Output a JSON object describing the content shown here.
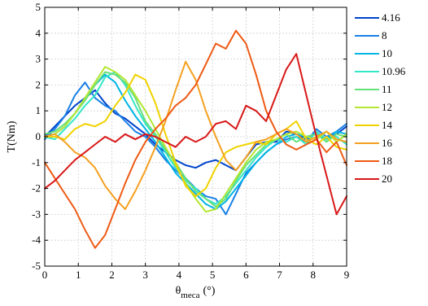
{
  "chart_data": {
    "type": "line",
    "xlabel_main": "θ",
    "xlabel_sub": "meca",
    "xlabel_unit": "(°)",
    "ylabel": "T(Nm)",
    "xlim": [
      0,
      9
    ],
    "ylim": [
      -5,
      5
    ],
    "xticks": [
      0,
      1,
      2,
      3,
      4,
      5,
      6,
      7,
      8,
      9
    ],
    "yticks": [
      -5,
      -4,
      -3,
      -2,
      -1,
      0,
      1,
      2,
      3,
      4,
      5
    ],
    "grid": true,
    "legend_position": "right-outside",
    "series": [
      {
        "name": "4.16",
        "color": "#0044cc",
        "x": [
          0,
          0.3,
          0.6,
          0.9,
          1.2,
          1.5,
          1.8,
          2.1,
          2.4,
          2.7,
          3.0,
          3.3,
          3.6,
          3.9,
          4.2,
          4.5,
          4.8,
          5.1,
          5.4,
          5.7,
          6.0,
          6.3,
          6.6,
          6.9,
          7.2,
          7.5,
          7.8,
          8.1,
          8.4,
          8.7,
          9.0
        ],
        "y": [
          0,
          0.4,
          0.8,
          1.2,
          1.5,
          1.8,
          1.3,
          0.9,
          0.7,
          0.4,
          0.1,
          -0.3,
          -0.6,
          -0.9,
          -1.1,
          -1.2,
          -1.0,
          -0.9,
          -1.1,
          -1.3,
          -0.8,
          -0.3,
          -0.2,
          -0.2,
          0.2,
          0.1,
          -0.1,
          0.2,
          -0.1,
          0.1,
          0.4
        ]
      },
      {
        "name": "8",
        "color": "#1a80e6",
        "x": [
          0,
          0.3,
          0.6,
          0.9,
          1.2,
          1.5,
          1.8,
          2.1,
          2.4,
          2.7,
          3.0,
          3.3,
          3.6,
          3.9,
          4.2,
          4.5,
          4.8,
          5.1,
          5.4,
          5.7,
          6.0,
          6.3,
          6.6,
          6.9,
          7.2,
          7.5,
          7.8,
          8.1,
          8.4,
          8.7,
          9.0
        ],
        "y": [
          -0.1,
          0.3,
          0.8,
          1.6,
          2.1,
          1.5,
          1.2,
          1.0,
          0.6,
          0.2,
          0.0,
          -0.4,
          -0.9,
          -1.3,
          -1.6,
          -2.0,
          -2.3,
          -2.4,
          -3.0,
          -2.2,
          -1.4,
          -1.0,
          -0.6,
          -0.3,
          -0.1,
          0.0,
          -0.2,
          0.3,
          0.0,
          0.2,
          0.5
        ]
      },
      {
        "name": "10",
        "color": "#00b4e6",
        "x": [
          0,
          0.3,
          0.6,
          0.9,
          1.2,
          1.5,
          1.8,
          2.1,
          2.4,
          2.7,
          3.0,
          3.3,
          3.6,
          3.9,
          4.2,
          4.5,
          4.8,
          5.1,
          5.4,
          5.7,
          6.0,
          6.3,
          6.6,
          6.9,
          7.2,
          7.5,
          7.8,
          8.1,
          8.4,
          8.7,
          9.0
        ],
        "y": [
          0,
          0.1,
          0.4,
          0.9,
          1.5,
          2.0,
          2.4,
          2.1,
          1.4,
          0.8,
          0.3,
          -0.2,
          -0.8,
          -1.4,
          -1.8,
          -2.2,
          -2.6,
          -2.8,
          -2.5,
          -2.0,
          -1.5,
          -1.0,
          -0.6,
          -0.3,
          0.0,
          0.1,
          0.0,
          0.1,
          -0.1,
          0.2,
          0.1
        ]
      },
      {
        "name": "10.96",
        "color": "#33e6c8",
        "x": [
          0,
          0.3,
          0.6,
          0.9,
          1.2,
          1.5,
          1.8,
          2.1,
          2.4,
          2.7,
          3.0,
          3.3,
          3.6,
          3.9,
          4.2,
          4.5,
          4.8,
          5.1,
          5.4,
          5.7,
          6.0,
          6.3,
          6.6,
          6.9,
          7.2,
          7.5,
          7.8,
          8.1,
          8.4,
          8.7,
          9.0
        ],
        "y": [
          0,
          -0.1,
          0.3,
          0.7,
          1.2,
          1.6,
          2.3,
          2.5,
          2.0,
          1.2,
          0.5,
          0.0,
          -0.6,
          -1.2,
          -1.7,
          -2.0,
          -2.4,
          -2.6,
          -2.3,
          -1.8,
          -1.3,
          -0.8,
          -0.4,
          -0.1,
          -0.2,
          0.0,
          -0.3,
          0.2,
          -0.1,
          0.0,
          -0.3
        ]
      },
      {
        "name": "11",
        "color": "#66e07a",
        "x": [
          0,
          0.3,
          0.6,
          0.9,
          1.2,
          1.5,
          1.8,
          2.1,
          2.4,
          2.7,
          3.0,
          3.3,
          3.6,
          3.9,
          4.2,
          4.5,
          4.8,
          5.1,
          5.4,
          5.7,
          6.0,
          6.3,
          6.6,
          6.9,
          7.2,
          7.5,
          7.8,
          8.1,
          8.4,
          8.7,
          9.0
        ],
        "y": [
          0.1,
          0.2,
          0.5,
          0.9,
          1.4,
          2.0,
          2.5,
          2.4,
          2.1,
          1.5,
          0.6,
          0.1,
          -0.5,
          -1.0,
          -1.6,
          -2.1,
          -2.4,
          -2.7,
          -2.4,
          -1.7,
          -1.1,
          -0.7,
          -0.3,
          -0.1,
          0.1,
          -0.2,
          0.0,
          0.1,
          -0.2,
          0.1,
          0.0
        ]
      },
      {
        "name": "12",
        "color": "#b4e632",
        "x": [
          0,
          0.3,
          0.6,
          0.9,
          1.2,
          1.5,
          1.8,
          2.1,
          2.4,
          2.7,
          3.0,
          3.3,
          3.6,
          3.9,
          4.2,
          4.5,
          4.8,
          5.1,
          5.4,
          5.7,
          6.0,
          6.3,
          6.6,
          6.9,
          7.2,
          7.5,
          7.8,
          8.1,
          8.4,
          8.7,
          9.0
        ],
        "y": [
          0,
          0.1,
          0.4,
          0.9,
          1.5,
          2.1,
          2.7,
          2.5,
          2.2,
          1.6,
          1.0,
          0.3,
          -0.4,
          -1.1,
          -1.8,
          -2.4,
          -2.9,
          -2.8,
          -2.2,
          -1.6,
          -1.0,
          -0.5,
          -0.2,
          -0.1,
          0.1,
          0.2,
          0.0,
          -0.1,
          0.2,
          -0.2,
          0.1
        ]
      },
      {
        "name": "14",
        "color": "#f0d200",
        "x": [
          0,
          0.3,
          0.6,
          0.9,
          1.2,
          1.5,
          1.8,
          2.1,
          2.4,
          2.7,
          3.0,
          3.3,
          3.6,
          3.9,
          4.2,
          4.5,
          4.8,
          5.1,
          5.4,
          5.7,
          6.0,
          6.3,
          6.6,
          6.9,
          7.2,
          7.5,
          7.8,
          8.1,
          8.4,
          8.7,
          9.0
        ],
        "y": [
          0,
          0,
          -0.1,
          0.3,
          0.5,
          0.4,
          0.6,
          1.2,
          1.7,
          2.4,
          2.2,
          1.3,
          0.1,
          -1.0,
          -1.9,
          -2.3,
          -2.0,
          -1.2,
          -0.6,
          -0.4,
          -0.3,
          -0.2,
          -0.3,
          0.1,
          0.3,
          0.6,
          -0.1,
          -0.3,
          0.0,
          -0.4,
          -0.5
        ]
      },
      {
        "name": "16",
        "color": "#f5a020",
        "x": [
          0,
          0.3,
          0.6,
          0.9,
          1.2,
          1.5,
          1.8,
          2.1,
          2.4,
          2.7,
          3.0,
          3.3,
          3.6,
          3.9,
          4.2,
          4.5,
          4.8,
          5.1,
          5.4,
          5.7,
          6.0,
          6.3,
          6.6,
          6.9,
          7.2,
          7.5,
          7.8,
          8.1,
          8.4,
          8.7,
          9.0
        ],
        "y": [
          0,
          0.1,
          -0.2,
          -0.6,
          -0.8,
          -1.2,
          -1.9,
          -2.4,
          -2.8,
          -2.1,
          -1.3,
          -0.4,
          0.6,
          1.8,
          2.9,
          2.2,
          1.0,
          0.0,
          -0.9,
          -1.3,
          -0.8,
          -0.2,
          -0.1,
          0.1,
          0.3,
          0.1,
          -0.2,
          0.0,
          0.2,
          -0.1,
          -0.2
        ]
      },
      {
        "name": "18",
        "color": "#ee5a14",
        "x": [
          0,
          0.3,
          0.6,
          0.9,
          1.2,
          1.5,
          1.8,
          2.1,
          2.4,
          2.7,
          3.0,
          3.3,
          3.6,
          3.9,
          4.2,
          4.5,
          4.8,
          5.1,
          5.4,
          5.7,
          6.0,
          6.3,
          6.6,
          6.9,
          7.2,
          7.5,
          7.8,
          8.1,
          8.4,
          8.7,
          9.0
        ],
        "y": [
          -1.0,
          -1.6,
          -2.2,
          -2.8,
          -3.6,
          -4.3,
          -3.8,
          -2.8,
          -1.8,
          -0.9,
          -0.2,
          0.3,
          0.7,
          1.2,
          1.5,
          2.0,
          2.8,
          3.6,
          3.4,
          4.1,
          3.6,
          2.4,
          1.0,
          0.2,
          -0.3,
          -0.5,
          -0.3,
          -0.1,
          -0.6,
          -0.2,
          -1.1
        ]
      },
      {
        "name": "20",
        "color": "#d81818",
        "x": [
          0,
          0.3,
          0.6,
          0.9,
          1.2,
          1.5,
          1.8,
          2.1,
          2.4,
          2.7,
          3.0,
          3.3,
          3.6,
          3.9,
          4.2,
          4.5,
          4.8,
          5.1,
          5.4,
          5.7,
          6.0,
          6.3,
          6.6,
          6.9,
          7.2,
          7.5,
          7.8,
          8.1,
          8.4,
          8.7,
          9.0
        ],
        "y": [
          -2.0,
          -1.7,
          -1.3,
          -0.9,
          -0.6,
          -0.3,
          0.0,
          -0.2,
          0.1,
          -0.1,
          0.1,
          0.0,
          -0.2,
          -0.4,
          0.0,
          -0.2,
          0.0,
          0.5,
          0.6,
          0.3,
          1.2,
          1.0,
          0.6,
          1.6,
          2.6,
          3.2,
          1.6,
          0.0,
          -1.5,
          -3.0,
          -2.3
        ]
      }
    ]
  }
}
